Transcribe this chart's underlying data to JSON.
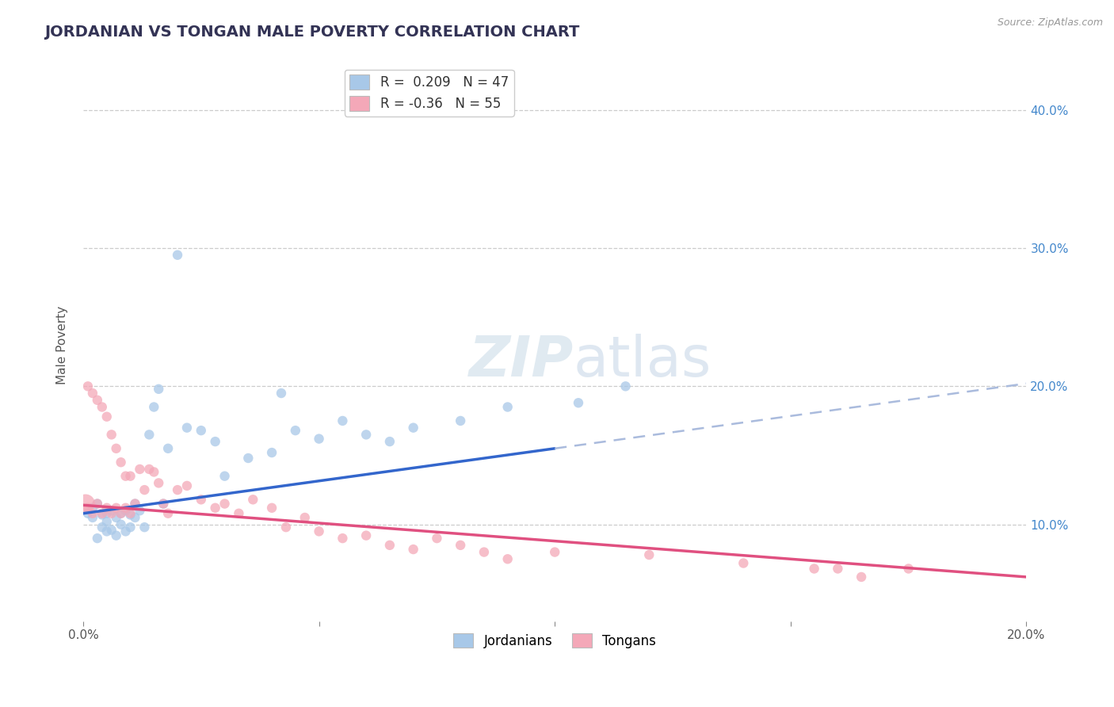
{
  "title": "JORDANIAN VS TONGAN MALE POVERTY CORRELATION CHART",
  "source_text": "Source: ZipAtlas.com",
  "ylabel": "Male Poverty",
  "xlim": [
    0.0,
    0.2
  ],
  "ylim": [
    0.03,
    0.43
  ],
  "xticks": [
    0.0,
    0.05,
    0.1,
    0.15,
    0.2
  ],
  "xtick_labels": [
    "0.0%",
    "",
    "",
    "",
    "20.0%"
  ],
  "ytick_labels": [
    "10.0%",
    "20.0%",
    "30.0%",
    "40.0%"
  ],
  "yticks": [
    0.1,
    0.2,
    0.3,
    0.4
  ],
  "grid_color": "#cccccc",
  "background_color": "#ffffff",
  "jordanian_color": "#a8c8e8",
  "tongan_color": "#f4a8b8",
  "jordanian_line_color": "#3366cc",
  "tongan_line_color": "#e05080",
  "R_jordanian": 0.209,
  "N_jordanian": 47,
  "R_tongan": -0.36,
  "N_tongan": 55,
  "j_line_x0": 0.0,
  "j_line_y0": 0.108,
  "j_line_x1": 0.1,
  "j_line_y1": 0.155,
  "j_line_dash_x0": 0.1,
  "j_line_dash_y0": 0.155,
  "j_line_dash_x1": 0.2,
  "j_line_dash_y1": 0.202,
  "t_line_x0": 0.0,
  "t_line_y0": 0.114,
  "t_line_x1": 0.2,
  "t_line_y1": 0.062,
  "jordanian_scatter_x": [
    0.001,
    0.002,
    0.002,
    0.003,
    0.003,
    0.004,
    0.004,
    0.005,
    0.005,
    0.005,
    0.006,
    0.006,
    0.007,
    0.007,
    0.008,
    0.008,
    0.009,
    0.009,
    0.01,
    0.01,
    0.011,
    0.011,
    0.012,
    0.013,
    0.014,
    0.015,
    0.016,
    0.017,
    0.018,
    0.02,
    0.022,
    0.025,
    0.028,
    0.03,
    0.035,
    0.04,
    0.042,
    0.045,
    0.05,
    0.055,
    0.06,
    0.065,
    0.07,
    0.08,
    0.09,
    0.105,
    0.115
  ],
  "jordanian_scatter_y": [
    0.108,
    0.105,
    0.112,
    0.09,
    0.115,
    0.098,
    0.107,
    0.095,
    0.102,
    0.108,
    0.096,
    0.11,
    0.092,
    0.105,
    0.1,
    0.108,
    0.095,
    0.11,
    0.098,
    0.107,
    0.105,
    0.115,
    0.11,
    0.098,
    0.165,
    0.185,
    0.198,
    0.115,
    0.155,
    0.295,
    0.17,
    0.168,
    0.16,
    0.135,
    0.148,
    0.152,
    0.195,
    0.168,
    0.162,
    0.175,
    0.165,
    0.16,
    0.17,
    0.175,
    0.185,
    0.188,
    0.2
  ],
  "jordanian_scatter_s": [
    80,
    80,
    80,
    80,
    80,
    80,
    80,
    80,
    80,
    80,
    80,
    80,
    80,
    80,
    80,
    80,
    80,
    80,
    80,
    80,
    80,
    80,
    80,
    80,
    80,
    80,
    80,
    80,
    80,
    80,
    80,
    80,
    80,
    80,
    80,
    80,
    80,
    80,
    80,
    80,
    80,
    80,
    80,
    80,
    80,
    80,
    80
  ],
  "tongan_scatter_x": [
    0.0005,
    0.001,
    0.001,
    0.002,
    0.002,
    0.003,
    0.003,
    0.004,
    0.004,
    0.005,
    0.005,
    0.006,
    0.006,
    0.007,
    0.007,
    0.008,
    0.008,
    0.009,
    0.009,
    0.01,
    0.01,
    0.011,
    0.012,
    0.013,
    0.014,
    0.015,
    0.016,
    0.017,
    0.018,
    0.02,
    0.022,
    0.025,
    0.028,
    0.03,
    0.033,
    0.036,
    0.04,
    0.043,
    0.047,
    0.05,
    0.055,
    0.06,
    0.065,
    0.07,
    0.075,
    0.08,
    0.085,
    0.09,
    0.1,
    0.12,
    0.14,
    0.155,
    0.16,
    0.165,
    0.175
  ],
  "tongan_scatter_y": [
    0.115,
    0.2,
    0.112,
    0.195,
    0.108,
    0.19,
    0.115,
    0.185,
    0.108,
    0.178,
    0.112,
    0.165,
    0.108,
    0.155,
    0.112,
    0.145,
    0.108,
    0.135,
    0.112,
    0.135,
    0.108,
    0.115,
    0.14,
    0.125,
    0.14,
    0.138,
    0.13,
    0.115,
    0.108,
    0.125,
    0.128,
    0.118,
    0.112,
    0.115,
    0.108,
    0.118,
    0.112,
    0.098,
    0.105,
    0.095,
    0.09,
    0.092,
    0.085,
    0.082,
    0.09,
    0.085,
    0.08,
    0.075,
    0.08,
    0.078,
    0.072,
    0.068,
    0.068,
    0.062,
    0.068
  ],
  "tongan_scatter_s": [
    300,
    80,
    80,
    80,
    80,
    80,
    80,
    80,
    80,
    80,
    80,
    80,
    80,
    80,
    80,
    80,
    80,
    80,
    80,
    80,
    80,
    80,
    80,
    80,
    80,
    80,
    80,
    80,
    80,
    80,
    80,
    80,
    80,
    80,
    80,
    80,
    80,
    80,
    80,
    80,
    80,
    80,
    80,
    80,
    80,
    80,
    80,
    80,
    80,
    80,
    80,
    80,
    80,
    80,
    80
  ]
}
